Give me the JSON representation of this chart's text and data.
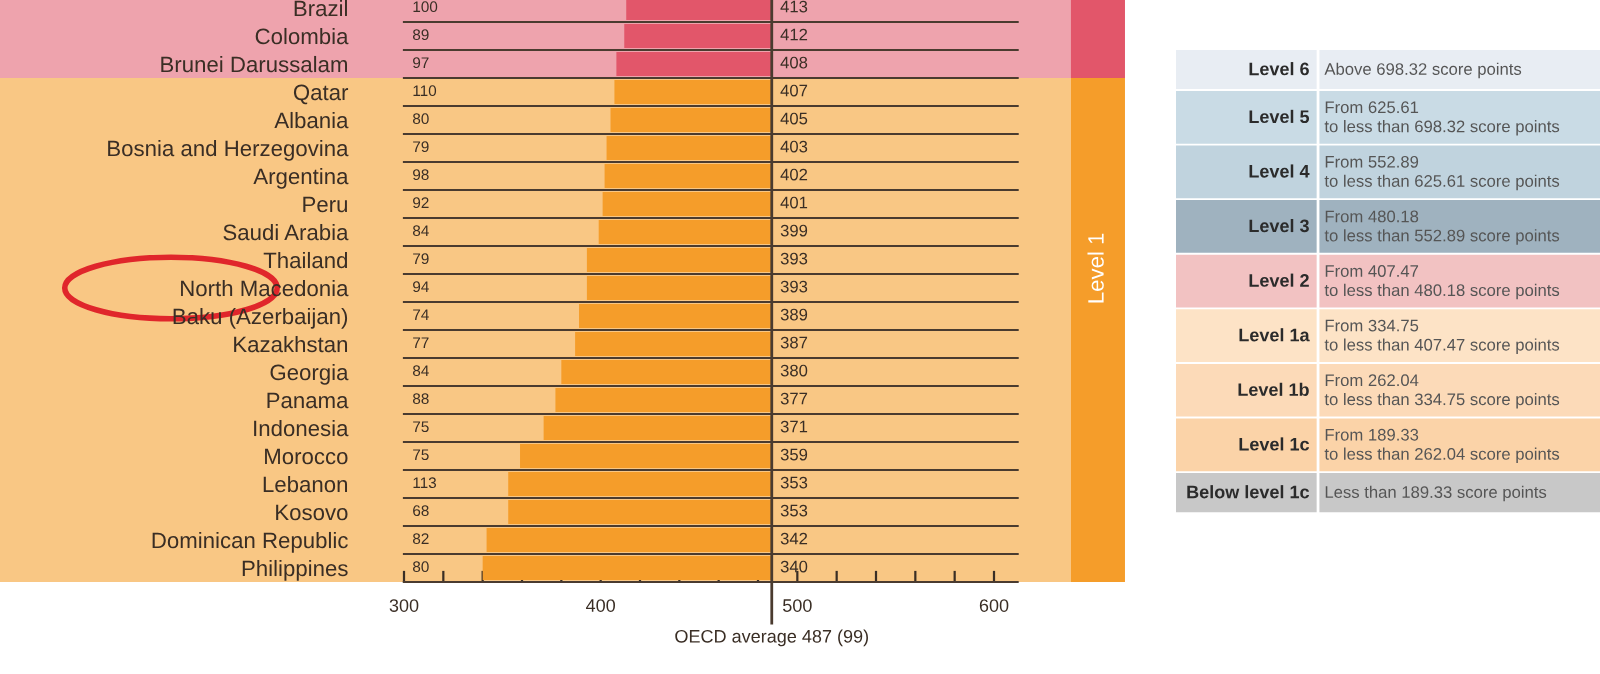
{
  "chart_data": [
    {
      "type": "bar",
      "orientation": "horizontal",
      "categories": [
        "Brazil",
        "Colombia",
        "Brunei Darussalam",
        "Qatar",
        "Albania",
        "Bosnia and Herzegovina",
        "Argentina",
        "Peru",
        "Saudi Arabia",
        "Thailand",
        "North Macedonia",
        "Baku (Azerbaijan)",
        "Kazakhstan",
        "Georgia",
        "Panama",
        "Indonesia",
        "Morocco",
        "Lebanon",
        "Kosovo",
        "Dominican Republic",
        "Philippines"
      ],
      "base": [
        413,
        412,
        408,
        407,
        405,
        403,
        402,
        401,
        399,
        393,
        393,
        389,
        387,
        380,
        377,
        371,
        359,
        353,
        353,
        342,
        340
      ],
      "values": [
        74,
        75,
        79,
        80,
        82,
        84,
        85,
        86,
        88,
        94,
        94,
        98,
        100,
        107,
        110,
        116,
        128,
        134,
        134,
        145,
        147
      ],
      "colors": [
        "#e2566a",
        "#e2566a",
        "#e2566a",
        "#f59d2a",
        "#f59d2a",
        "#f59d2a",
        "#f59d2a",
        "#f59d2a",
        "#f59d2a",
        "#f59d2a",
        "#f59d2a",
        "#f59d2a",
        "#f59d2a",
        "#f59d2a",
        "#f59d2a",
        "#f59d2a",
        "#f59d2a",
        "#f59d2a",
        "#f59d2a",
        "#f59d2a",
        "#f59d2a"
      ],
      "xlim": [
        300,
        600
      ],
      "xticks": [
        300,
        {
          "value": 320,
          "label": null
        },
        {
          "value": 340,
          "label": null
        },
        {
          "value": 360,
          "label": null
        },
        {
          "value": 380,
          "label": null
        },
        400,
        {
          "value": 420,
          "label": null
        },
        {
          "value": 440,
          "label": null
        },
        {
          "value": 460,
          "label": null
        },
        {
          "value": 480,
          "label": null
        },
        500,
        {
          "value": 520,
          "label": null
        },
        {
          "value": 540,
          "label": null
        },
        {
          "value": 560,
          "label": null
        },
        {
          "value": 580,
          "label": null
        },
        600
      ],
      "grid": "y",
      "ref_lines": [
        {
          "axis": "x",
          "value": 487,
          "label": "OECD average 487 (99)",
          "color": "#4a3b2f"
        }
      ],
      "bands": [
        {
          "axis": "y",
          "from": "Brazil",
          "to": "Brunei Darussalam",
          "label": null,
          "color": "#eea3ad"
        },
        {
          "axis": "y",
          "from": "Qatar",
          "to": "Philippines",
          "label": "Level 1",
          "color": "#f9c784"
        }
      ],
      "annotations": [
        "100",
        "89",
        "97",
        "110",
        "80",
        "79",
        "98",
        "92",
        "84",
        "79",
        "94",
        "74",
        "77",
        "84",
        "88",
        "75",
        "75",
        "113",
        "68",
        "82",
        "80",
        "413",
        "412",
        "408",
        "407",
        "405",
        "403",
        "402",
        "401",
        "399",
        "393",
        "393",
        "389",
        "387",
        "380",
        "377",
        "371",
        "359",
        "353",
        "353",
        "342",
        "340"
      ]
    },
    {
      "type": "other",
      "categories": [
        "Level 6",
        "Level 5",
        "Level 4",
        "Level 3",
        "Level 2",
        "Level 1a",
        "Level 1b",
        "Level 1c",
        "Below level 1c"
      ],
      "annotations": [
        "Above 698.32 score points",
        "From 625.61\nto less than 698.32 score points",
        "From 552.89\nto less than 625.61 score points",
        "From 480.18\nto less than 552.89 score points",
        "From 407.47\nto less than 480.18 score points",
        "From 334.75\nto less than 407.47 score points",
        "From 262.04\nto less than 334.75 score points",
        "From 189.33\nto less than 262.04 score points",
        "Less than 189.33 score points"
      ],
      "colors": [
        "#e8edf3",
        "#c9dbe5",
        "#c0d3de",
        "#9fb2bf",
        "#f2c2c2",
        "#fde3c6",
        "#fcdab8",
        "#fbd3a8",
        "#c8c8c8"
      ]
    }
  ]
}
